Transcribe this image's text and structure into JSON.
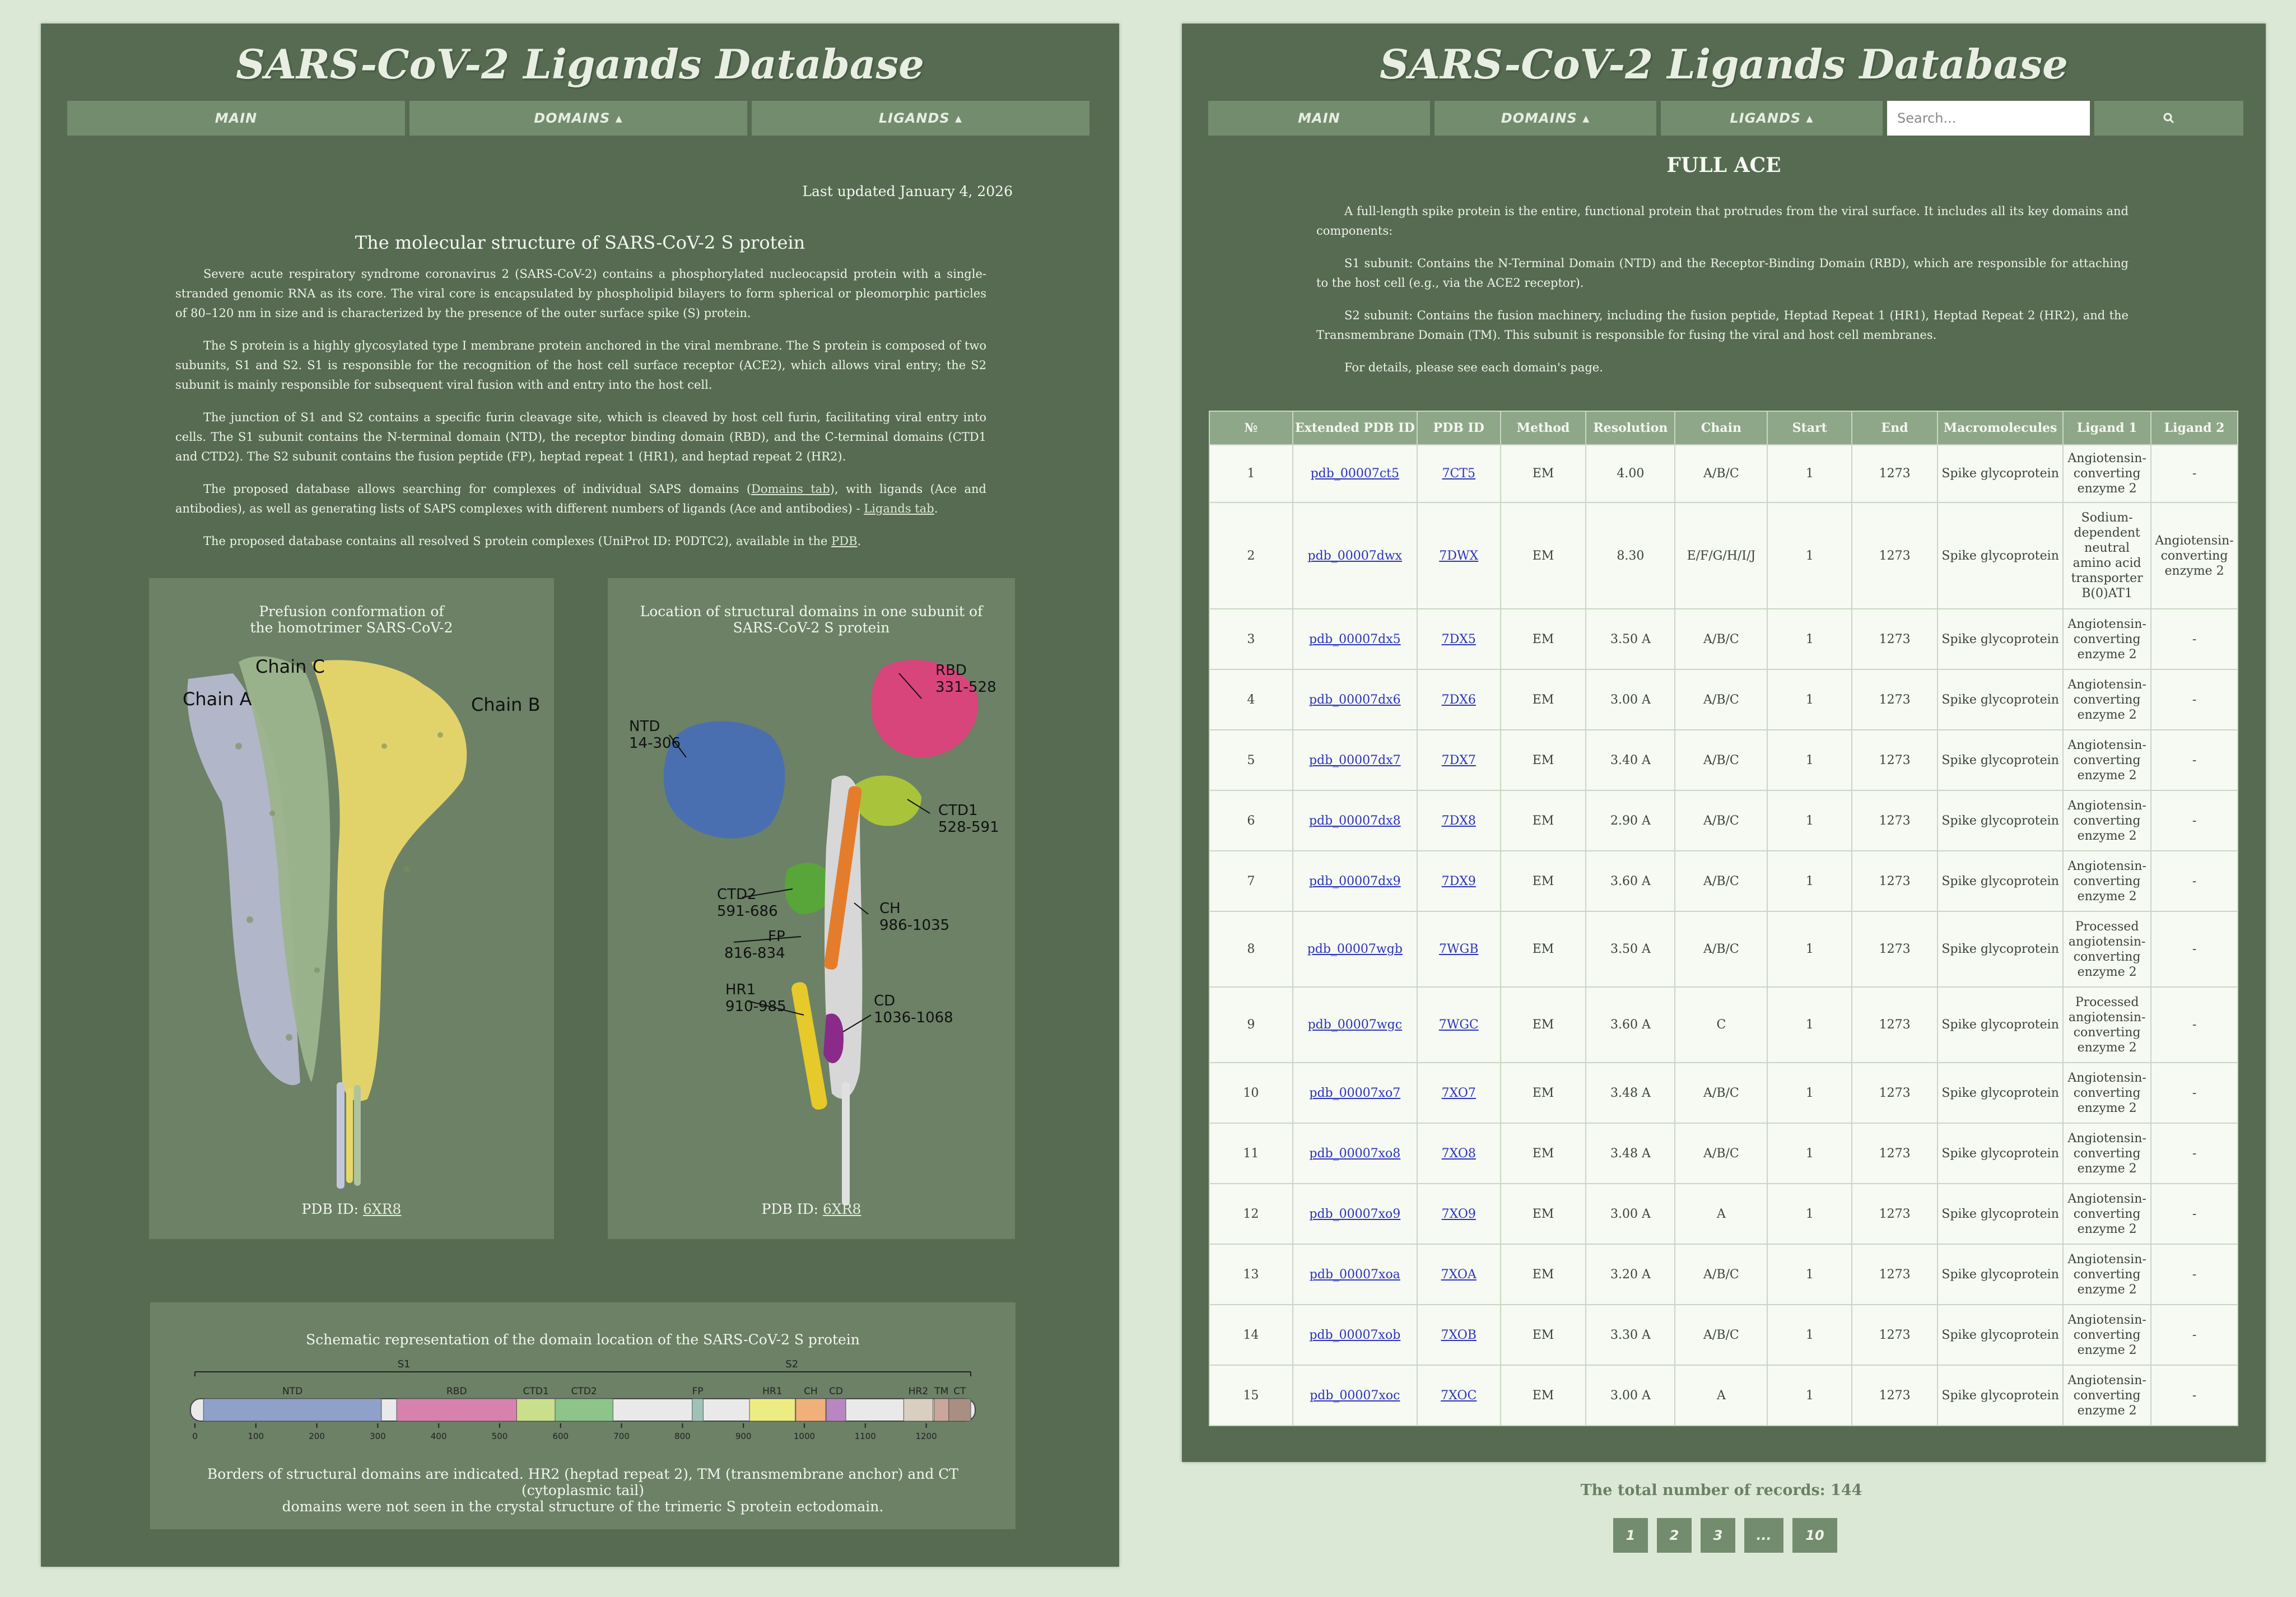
{
  "site_title": "SARS-CoV-2 Ligands Database",
  "nav": {
    "main": "MAIN",
    "domains": "DOMAINS ▴",
    "ligands": "LIGANDS ▴",
    "search_placeholder": "Search...",
    "search_icon": "search-icon"
  },
  "left": {
    "last_updated": "Last updated January 4, 2026",
    "section_title": "The molecular structure of SARS-CoV-2 S protein",
    "p1": "Severe acute respiratory syndrome coronavirus 2 (SARS-CoV-2) contains a phosphorylated nucleocapsid protein with a single-stranded genomic RNA as its core. The viral core is encapsulated by phospholipid bilayers to form spherical or pleomorphic particles of 80–120 nm in size and is characterized by the presence of the outer surface spike (S) protein.",
    "p2": "The S protein is a highly glycosylated type I membrane protein anchored in the viral membrane. The S protein is composed of two subunits, S1 and S2. S1 is responsible for the recognition of the host cell surface receptor (ACE2), which allows viral entry; the S2 subunit is mainly responsible for subsequent viral fusion with and entry into the host cell.",
    "p3": "The junction of S1 and S2 contains a specific furin cleavage site, which is cleaved by host cell furin, facilitating viral entry into cells. The S1 subunit contains the N-terminal domain (NTD), the receptor binding domain (RBD), and the C-terminal domains (CTD1 and CTD2). The S2 subunit contains the fusion peptide (FP), heptad repeat 1 (HR1), and heptad repeat 2 (HR2).",
    "p4_a": "The proposed database allows searching for complexes of individual SAPS domains (",
    "p4_link1": "Domains tab",
    "p4_b": "), with ligands (Ace and antibodies), as well as generating lists of SAPS complexes with different numbers of ligands (Ace and antibodies) - ",
    "p4_link2": "Ligands tab",
    "p4_c": ".",
    "p5_a": "The proposed database contains all resolved S protein complexes (UniProt ID: P0DTC2), available in the ",
    "p5_link": "PDB",
    "p5_b": ".",
    "fig1": {
      "caption_line1": "Prefusion conformation of",
      "caption_line2": "the homotrimer SARS-CoV-2",
      "chain_a": "Chain A",
      "chain_b": "Chain B",
      "chain_c": "Chain C",
      "pdb_label": "PDB ID: ",
      "pdb_id": "6XR8"
    },
    "fig2": {
      "caption_line1": "Location of structural domains in one subunit of",
      "caption_line2": "SARS-CoV-2 S protein",
      "labels": {
        "rbd": "RBD",
        "rbd_range": "331-528",
        "ntd": "NTD",
        "ntd_range": "14-306",
        "ctd1": "CTD1",
        "ctd1_range": "528-591",
        "ctd2": "CTD2",
        "ctd2_range": "591-686",
        "fp": "FP",
        "fp_range": "816-834",
        "ch": "CH",
        "ch_range": "986-1035",
        "hr1": "HR1",
        "hr1_range": "910-985",
        "cd": "CD",
        "cd_range": "1036-1068"
      },
      "pdb_label": "PDB ID: ",
      "pdb_id": "6XR8"
    },
    "schematic": {
      "title": "Schematic representation of the domain location of the SARS-CoV-2 S protein",
      "s1": "S1",
      "s2": "S2",
      "domains": [
        {
          "name": "NTD",
          "start": 14,
          "end": 306,
          "color": "#8fa0c9"
        },
        {
          "name": "RBD",
          "start": 331,
          "end": 528,
          "color": "#d782ad"
        },
        {
          "name": "CTD1",
          "start": 528,
          "end": 591,
          "color": "#c9df8c"
        },
        {
          "name": "CTD2",
          "start": 591,
          "end": 686,
          "color": "#8cc48a"
        },
        {
          "name": "FP",
          "start": 816,
          "end": 834,
          "color": "#9ec3b6"
        },
        {
          "name": "HR1",
          "start": 910,
          "end": 985,
          "color": "#ecec82"
        },
        {
          "name": "CH",
          "start": 986,
          "end": 1035,
          "color": "#f1b07a"
        },
        {
          "name": "CD",
          "start": 1036,
          "end": 1068,
          "color": "#b887c1"
        },
        {
          "name": "HR2",
          "start": 1163,
          "end": 1211,
          "color": "#d8cfc0"
        },
        {
          "name": "TM",
          "start": 1213,
          "end": 1237,
          "color": "#c9a79a"
        },
        {
          "name": "CT",
          "start": 1237,
          "end": 1273,
          "color": "#a98f82"
        }
      ],
      "ticks": [
        "0",
        "100",
        "200",
        "300",
        "400",
        "500",
        "600",
        "700",
        "800",
        "900",
        "1000",
        "1100",
        "1200"
      ],
      "note_line1": "Borders of structural domains are indicated. HR2 (heptad repeat 2), TM (transmembrane anchor) and CT (cytoplasmic tail)",
      "note_line2": "domains were not seen in the crystal structure of the trimeric S protein ectodomain."
    }
  },
  "right": {
    "title": "FULL ACE",
    "p1": "A full-length spike protein is the entire, functional protein that protrudes from the viral surface. It includes all its key domains and components:",
    "p2": "S1 subunit: Contains the N-Terminal Domain (NTD) and the Receptor-Binding Domain (RBD), which are responsible for attaching to the host cell (e.g., via the ACE2 receptor).",
    "p3": "S2 subunit: Contains the fusion machinery, including the fusion peptide, Heptad Repeat 1 (HR1), Heptad Repeat 2 (HR2), and the Transmembrane Domain (TM). This subunit is responsible for fusing the viral and host cell membranes.",
    "p4": "For details, please see each domain's page.",
    "table": {
      "headers": [
        "№",
        "Extended PDB ID",
        "PDB ID",
        "Method",
        "Resolution",
        "Chain",
        "Start",
        "End",
        "Macromolecules",
        "Ligand 1",
        "Ligand 2"
      ],
      "rows": [
        [
          "1",
          "pdb_00007ct5",
          "7CT5",
          "EM",
          "4.00",
          "A/B/C",
          "1",
          "1273",
          "Spike glycoprotein",
          "Angiotensin-converting enzyme 2",
          "-"
        ],
        [
          "2",
          "pdb_00007dwx",
          "7DWX",
          "EM",
          "8.30",
          "E/F/G/H/I/J",
          "1",
          "1273",
          "Spike glycoprotein",
          "Sodium-dependent neutral amino acid transporter B(0)AT1",
          "Angiotensin-converting enzyme 2"
        ],
        [
          "3",
          "pdb_00007dx5",
          "7DX5",
          "EM",
          "3.50 A",
          "A/B/C",
          "1",
          "1273",
          "Spike glycoprotein",
          "Angiotensin-converting enzyme 2",
          "-"
        ],
        [
          "4",
          "pdb_00007dx6",
          "7DX6",
          "EM",
          "3.00 A",
          "A/B/C",
          "1",
          "1273",
          "Spike glycoprotein",
          "Angiotensin-converting enzyme 2",
          "-"
        ],
        [
          "5",
          "pdb_00007dx7",
          "7DX7",
          "EM",
          "3.40 A",
          "A/B/C",
          "1",
          "1273",
          "Spike glycoprotein",
          "Angiotensin-converting enzyme 2",
          "-"
        ],
        [
          "6",
          "pdb_00007dx8",
          "7DX8",
          "EM",
          "2.90 A",
          "A/B/C",
          "1",
          "1273",
          "Spike glycoprotein",
          "Angiotensin-converting enzyme 2",
          "-"
        ],
        [
          "7",
          "pdb_00007dx9",
          "7DX9",
          "EM",
          "3.60 A",
          "A/B/C",
          "1",
          "1273",
          "Spike glycoprotein",
          "Angiotensin-converting enzyme 2",
          "-"
        ],
        [
          "8",
          "pdb_00007wgb",
          "7WGB",
          "EM",
          "3.50 A",
          "A/B/C",
          "1",
          "1273",
          "Spike glycoprotein",
          "Processed angiotensin-converting enzyme 2",
          "-"
        ],
        [
          "9",
          "pdb_00007wgc",
          "7WGC",
          "EM",
          "3.60 A",
          "C",
          "1",
          "1273",
          "Spike glycoprotein",
          "Processed angiotensin-converting enzyme 2",
          "-"
        ],
        [
          "10",
          "pdb_00007xo7",
          "7XO7",
          "EM",
          "3.48 A",
          "A/B/C",
          "1",
          "1273",
          "Spike glycoprotein",
          "Angiotensin-converting enzyme 2",
          "-"
        ],
        [
          "11",
          "pdb_00007xo8",
          "7XO8",
          "EM",
          "3.48 A",
          "A/B/C",
          "1",
          "1273",
          "Spike glycoprotein",
          "Angiotensin-converting enzyme 2",
          "-"
        ],
        [
          "12",
          "pdb_00007xo9",
          "7XO9",
          "EM",
          "3.00 A",
          "A",
          "1",
          "1273",
          "Spike glycoprotein",
          "Angiotensin-converting enzyme 2",
          "-"
        ],
        [
          "13",
          "pdb_00007xoa",
          "7XOA",
          "EM",
          "3.20 A",
          "A/B/C",
          "1",
          "1273",
          "Spike glycoprotein",
          "Angiotensin-converting enzyme 2",
          "-"
        ],
        [
          "14",
          "pdb_00007xob",
          "7XOB",
          "EM",
          "3.30 A",
          "A/B/C",
          "1",
          "1273",
          "Spike glycoprotein",
          "Angiotensin-converting enzyme 2",
          "-"
        ],
        [
          "15",
          "pdb_00007xoc",
          "7XOC",
          "EM",
          "3.00 A",
          "A",
          "1",
          "1273",
          "Spike glycoprotein",
          "Angiotensin-converting enzyme 2",
          "-"
        ]
      ]
    },
    "total_label": "The total number of records: ",
    "total_count": "144",
    "pagination": [
      "1",
      "2",
      "3",
      "...",
      "10"
    ]
  },
  "colors": {
    "card_bg": "#566b52",
    "nav_bg": "#748c6e",
    "page_bg": "#dce8d6",
    "table_header": "#8fa789",
    "link": "#2b34b8"
  }
}
